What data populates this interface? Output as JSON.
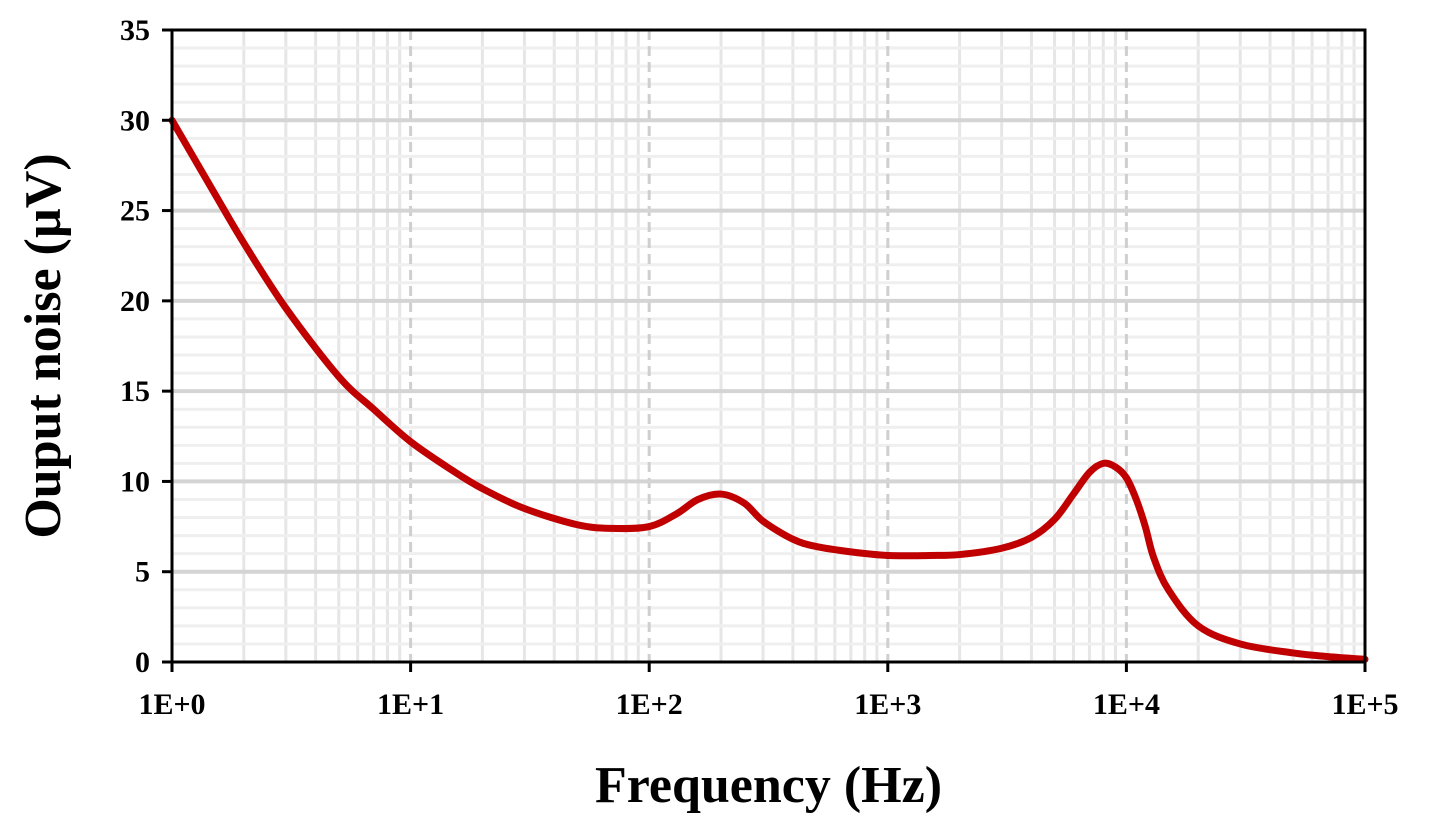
{
  "chart_data": {
    "type": "line",
    "title": "",
    "xlabel": "Frequency (Hz)",
    "ylabel": "Ouput noise (µV)",
    "x_scale": "log",
    "xlim": [
      1,
      100000
    ],
    "ylim": [
      0,
      35
    ],
    "x_ticks": [
      {
        "value": 1,
        "label": "1E+0"
      },
      {
        "value": 10,
        "label": "1E+1"
      },
      {
        "value": 100,
        "label": "1E+2"
      },
      {
        "value": 1000,
        "label": "1E+3"
      },
      {
        "value": 10000,
        "label": "1E+4"
      },
      {
        "value": 100000,
        "label": "1E+5"
      }
    ],
    "y_ticks": [
      {
        "value": 0,
        "label": "0"
      },
      {
        "value": 5,
        "label": "5"
      },
      {
        "value": 10,
        "label": "10"
      },
      {
        "value": 15,
        "label": "15"
      },
      {
        "value": 20,
        "label": "20"
      },
      {
        "value": 25,
        "label": "25"
      },
      {
        "value": 30,
        "label": "30"
      },
      {
        "value": 35,
        "label": "35"
      }
    ],
    "grid": true,
    "series": [
      {
        "color": "#C00000",
        "x": [
          1,
          1.5,
          2,
          3,
          5,
          7,
          10,
          15,
          20,
          30,
          50,
          70,
          100,
          130,
          160,
          200,
          250,
          300,
          400,
          500,
          700,
          1000,
          1500,
          2000,
          3000,
          4000,
          5000,
          6000,
          7000,
          8000,
          9000,
          10000,
          11000,
          12000,
          13000,
          15000,
          20000,
          30000,
          50000,
          70000,
          100000
        ],
        "y": [
          30,
          26,
          23.2,
          19.6,
          15.8,
          14,
          12.2,
          10.6,
          9.6,
          8.5,
          7.6,
          7.4,
          7.5,
          8.2,
          9,
          9.3,
          8.8,
          7.8,
          6.8,
          6.4,
          6.1,
          5.9,
          5.9,
          5.95,
          6.3,
          6.9,
          7.9,
          9.3,
          10.5,
          11,
          10.8,
          10.2,
          9,
          7.5,
          5.8,
          4,
          2,
          1,
          0.5,
          0.3,
          0.15
        ]
      }
    ]
  }
}
